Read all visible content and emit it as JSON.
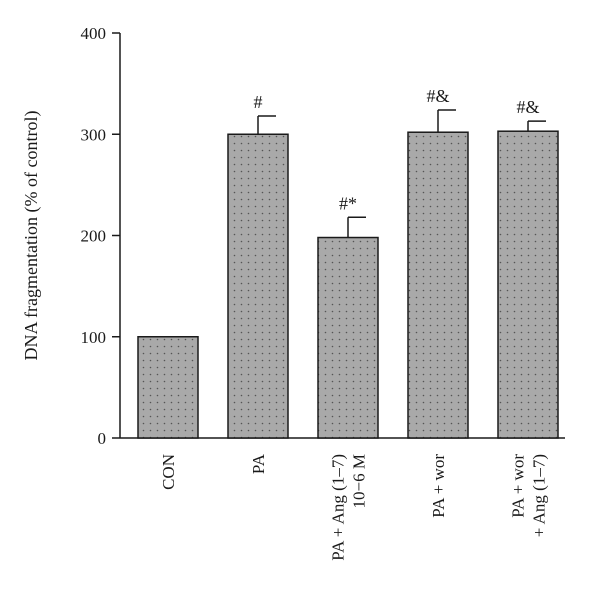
{
  "chart_data": {
    "type": "bar",
    "ylabel": "DNA fragmentation (% of control)",
    "xlabel": "",
    "ylim": [
      0,
      400
    ],
    "yticks": [
      0,
      100,
      200,
      300,
      400
    ],
    "categories": [
      [
        "CON"
      ],
      [
        "PA"
      ],
      [
        "PA + Ang (1–7)",
        "10−6 M"
      ],
      [
        "PA + wor"
      ],
      [
        "PA + wor",
        "+ Ang (1–7)"
      ]
    ],
    "values": [
      100,
      300,
      198,
      302,
      303
    ],
    "errors": [
      0,
      18,
      20,
      22,
      10
    ],
    "annotations": [
      "",
      "#",
      "#*",
      "#&",
      "#&"
    ],
    "bar_color": "#a9a9a9",
    "bar_dot_color": "#555555",
    "bar_edge_color": "#1a1a1a",
    "grid": false
  }
}
